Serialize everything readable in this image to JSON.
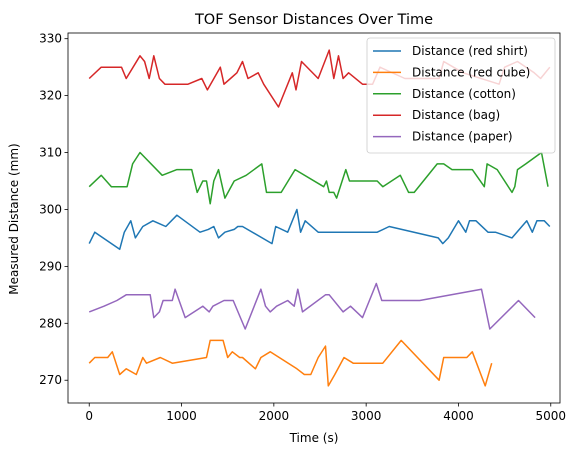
{
  "chart_data": {
    "type": "line",
    "title": "TOF Sensor Distances Over Time",
    "xlabel": "Time (s)",
    "ylabel": "Measured Distance (mm)",
    "xlim": [
      -230,
      5100
    ],
    "ylim": [
      266,
      331
    ],
    "xticks": [
      0,
      1000,
      2000,
      3000,
      4000,
      5000
    ],
    "yticks": [
      270,
      280,
      290,
      300,
      310,
      320,
      330
    ],
    "grid": false,
    "legend_position": "top-right",
    "series": [
      {
        "name": "Distance (red shirt)",
        "color": "#1f77b4",
        "x": [
          0,
          60,
          330,
          380,
          450,
          500,
          580,
          690,
          760,
          830,
          950,
          1200,
          1290,
          1350,
          1400,
          1470,
          1570,
          1610,
          1660,
          1980,
          2020,
          2150,
          2250,
          2290,
          2340,
          2480,
          3120,
          3250,
          3780,
          3830,
          3890,
          4000,
          4080,
          4120,
          4190,
          4320,
          4400,
          4580,
          4740,
          4800,
          4850,
          4930,
          4990
        ],
        "y": [
          294,
          296,
          293,
          296,
          298,
          295,
          297,
          298,
          297.5,
          297,
          299,
          296,
          296.5,
          297,
          295,
          296,
          296.5,
          297,
          297,
          294,
          297,
          296,
          300,
          296,
          298,
          296,
          296,
          297,
          295,
          294,
          295,
          298,
          296,
          298,
          298,
          296,
          296,
          295,
          298,
          296,
          298,
          298,
          297
        ]
      },
      {
        "name": "Distance (red cube)",
        "color": "#ff7f0e",
        "x": [
          0,
          60,
          200,
          250,
          330,
          400,
          510,
          580,
          620,
          770,
          900,
          1270,
          1310,
          1450,
          1500,
          1550,
          1630,
          1660,
          1800,
          1860,
          1960,
          2250,
          2330,
          2400,
          2480,
          2560,
          2590,
          2660,
          2760,
          2860,
          3180,
          3380,
          3790,
          3840,
          4090,
          4150,
          4290,
          4360
        ],
        "y": [
          273,
          274,
          274,
          275,
          271,
          272,
          271,
          274,
          273,
          274,
          273,
          274,
          277,
          277,
          274,
          275,
          274,
          274,
          272,
          274,
          275,
          272,
          271,
          271,
          274,
          276,
          269,
          271,
          274,
          273,
          273,
          277,
          270,
          274,
          274,
          275,
          269,
          273
        ]
      },
      {
        "name": "Distance (cotton)",
        "color": "#2ca02c",
        "x": [
          0,
          130,
          240,
          410,
          470,
          550,
          790,
          950,
          1110,
          1170,
          1230,
          1270,
          1310,
          1350,
          1400,
          1470,
          1570,
          1700,
          1870,
          1920,
          2080,
          2230,
          2540,
          2570,
          2600,
          2650,
          2680,
          2780,
          2820,
          3120,
          3180,
          3370,
          3460,
          3520,
          3770,
          3840,
          3930,
          4020,
          4150,
          4280,
          4310,
          4420,
          4580,
          4610,
          4640,
          4730,
          4900,
          4970
        ],
        "y": [
          304,
          306,
          304,
          304,
          308,
          310,
          306,
          307,
          307,
          303,
          305,
          305,
          301,
          305,
          307,
          302,
          305,
          306,
          308,
          303,
          303,
          307,
          304,
          305,
          303,
          303,
          302,
          307,
          305,
          305,
          304,
          306,
          303,
          303,
          308,
          308,
          307,
          307,
          307,
          304,
          308,
          307,
          303,
          304,
          307,
          308,
          310,
          304
        ]
      },
      {
        "name": "Distance (bag)",
        "color": "#d62728",
        "x": [
          0,
          130,
          280,
          350,
          400,
          550,
          600,
          650,
          700,
          760,
          820,
          1070,
          1220,
          1280,
          1420,
          1460,
          1530,
          1600,
          1660,
          1720,
          1830,
          1890,
          2050,
          2200,
          2240,
          2300,
          2480,
          2600,
          2650,
          2700,
          2750,
          2810,
          2960,
          3070,
          3150,
          3420,
          3790,
          3840,
          4050,
          4440,
          4500,
          4640,
          4820,
          4890,
          4990
        ],
        "y": [
          323,
          325,
          325,
          325,
          323,
          327,
          326,
          323,
          327,
          323,
          322,
          322,
          323,
          321,
          325,
          322,
          323,
          324,
          326,
          323,
          324,
          322,
          318,
          324,
          321,
          326,
          323,
          328,
          323,
          327,
          323,
          324,
          322,
          322,
          325,
          323,
          323,
          326,
          324,
          322,
          325,
          326,
          324,
          323,
          325
        ]
      },
      {
        "name": "Distance (paper)",
        "color": "#9467bd",
        "x": [
          0,
          160,
          300,
          400,
          580,
          660,
          700,
          760,
          800,
          900,
          930,
          1040,
          1230,
          1300,
          1340,
          1460,
          1560,
          1690,
          1860,
          1910,
          1960,
          2030,
          2150,
          2220,
          2260,
          2310,
          2560,
          2600,
          2750,
          2830,
          2960,
          3110,
          3170,
          3580,
          4250,
          4340,
          4650,
          4830
        ],
        "y": [
          282,
          283,
          284,
          285,
          285,
          285,
          281,
          282,
          284,
          284,
          286,
          281,
          283,
          282,
          283,
          284,
          284,
          279,
          286,
          283,
          282,
          283,
          284,
          283,
          286,
          282,
          285,
          285,
          282,
          283,
          281,
          287,
          284,
          284,
          286,
          279,
          284,
          281
        ]
      }
    ]
  }
}
